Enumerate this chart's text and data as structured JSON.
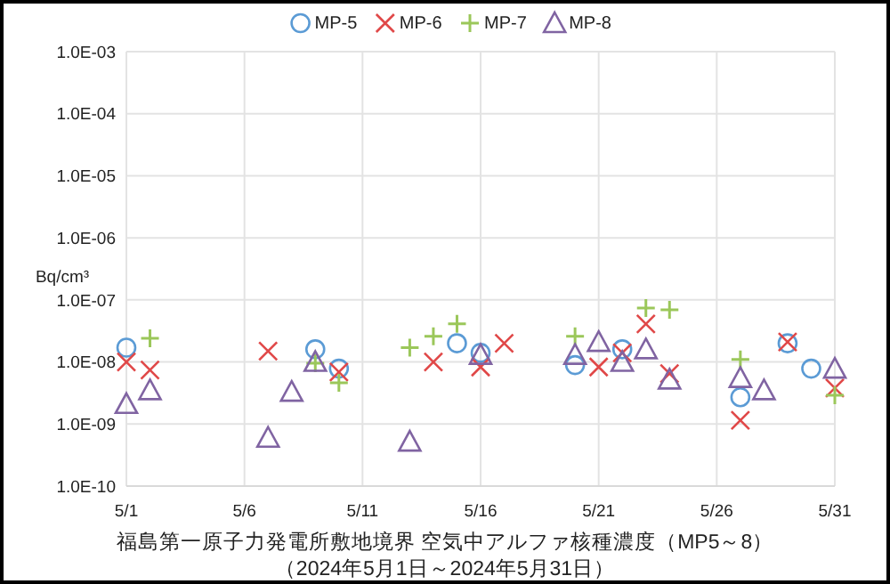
{
  "chart_data": {
    "type": "scatter",
    "title": "福島第一原子力発電所敷地境界  空気中アルファ核種濃度（MP5～8）",
    "subtitle": "（2024年5月1日～2024年5月31日）",
    "ylabel": "Bq/cm³",
    "log": "y",
    "grid": true,
    "legend": "top",
    "xlim": [
      "2024-05-01",
      "2024-05-31"
    ],
    "xticks": [
      {
        "value": "2024-05-01",
        "label": "5/1"
      },
      {
        "value": "2024-05-06",
        "label": "5/6"
      },
      {
        "value": "2024-05-11",
        "label": "5/11"
      },
      {
        "value": "2024-05-16",
        "label": "5/16"
      },
      {
        "value": "2024-05-21",
        "label": "5/21"
      },
      {
        "value": "2024-05-26",
        "label": "5/26"
      },
      {
        "value": "2024-05-31",
        "label": "5/31"
      }
    ],
    "ylim": [
      1e-10,
      0.001
    ],
    "yticks": [
      {
        "value": 1e-10,
        "label": "1.0E-10"
      },
      {
        "value": 1e-09,
        "label": "1.0E-09"
      },
      {
        "value": 1e-08,
        "label": "1.0E-08"
      },
      {
        "value": 1e-07,
        "label": "1.0E-07"
      },
      {
        "value": 1e-06,
        "label": "1.0E-06"
      },
      {
        "value": 1e-05,
        "label": "1.0E-05"
      },
      {
        "value": 0.0001,
        "label": "1.0E-04"
      },
      {
        "value": 0.001,
        "label": "1.0E-03"
      }
    ],
    "series": [
      {
        "name": "MP-5",
        "color": "#5b9bd5",
        "marker": "circle",
        "x": [
          "2024-05-01",
          "2024-05-09",
          "2024-05-10",
          "2024-05-15",
          "2024-05-16",
          "2024-05-20",
          "2024-05-22",
          "2024-05-27",
          "2024-05-29",
          "2024-05-30"
        ],
        "values": [
          1.7e-08,
          1.6e-08,
          7.8e-09,
          2e-08,
          1.4e-08,
          8.9e-09,
          1.6e-08,
          2.7e-09,
          2e-08,
          7.8e-09
        ]
      },
      {
        "name": "MP-6",
        "color": "#e04848",
        "marker": "cross",
        "x": [
          "2024-05-01",
          "2024-05-02",
          "2024-05-07",
          "2024-05-10",
          "2024-05-14",
          "2024-05-16",
          "2024-05-17",
          "2024-05-21",
          "2024-05-22",
          "2024-05-23",
          "2024-05-24",
          "2024-05-27",
          "2024-05-29",
          "2024-05-31"
        ],
        "values": [
          1e-08,
          7.4e-09,
          1.5e-08,
          6.9e-09,
          1e-08,
          8.3e-09,
          2e-08,
          8.3e-09,
          1.4e-08,
          4.1e-08,
          6.5e-09,
          1.15e-09,
          2.1e-08,
          3.8e-09
        ]
      },
      {
        "name": "MP-7",
        "color": "#9bc75a",
        "marker": "plus",
        "x": [
          "2024-05-02",
          "2024-05-09",
          "2024-05-10",
          "2024-05-13",
          "2024-05-14",
          "2024-05-15",
          "2024-05-20",
          "2024-05-23",
          "2024-05-24",
          "2024-05-27",
          "2024-05-31"
        ],
        "values": [
          2.4e-08,
          9.5e-09,
          4.6e-09,
          1.7e-08,
          2.6e-08,
          4.1e-08,
          2.6e-08,
          7.4e-08,
          6.9e-08,
          1.1e-08,
          2.9e-09
        ]
      },
      {
        "name": "MP-8",
        "color": "#8064a2",
        "marker": "triangle",
        "x": [
          "2024-05-01",
          "2024-05-02",
          "2024-05-07",
          "2024-05-08",
          "2024-05-09",
          "2024-05-13",
          "2024-05-16",
          "2024-05-20",
          "2024-05-21",
          "2024-05-22",
          "2024-05-23",
          "2024-05-24",
          "2024-05-27",
          "2024-05-28",
          "2024-05-31"
        ],
        "values": [
          2.1e-09,
          3.5e-09,
          6e-10,
          3.3e-09,
          1e-08,
          5.2e-10,
          1.3e-08,
          1.3e-08,
          2.1e-08,
          1e-08,
          1.6e-08,
          5.2e-09,
          5.5e-09,
          3.5e-09,
          7.8e-09
        ]
      }
    ]
  }
}
